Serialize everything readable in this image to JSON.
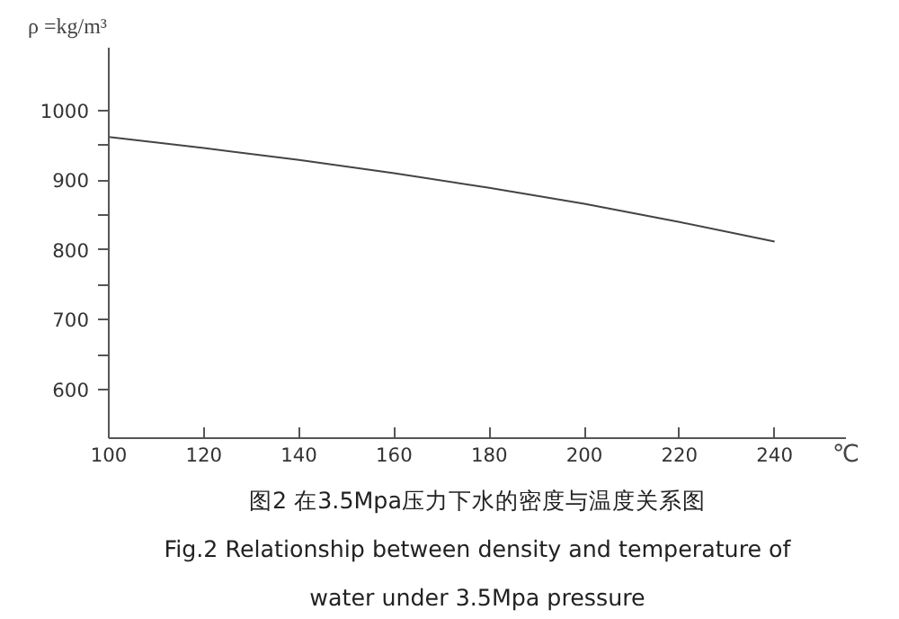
{
  "chart_data": {
    "type": "line",
    "ylabel": "ρ =kg/m³",
    "xlabel": "℃",
    "annotations": [
      "图2 在3.5Mpa压力下水的密度与温度关系图",
      "Fig.2 Relationship between density and temperature of",
      "water under 3.5Mpa pressure"
    ],
    "x": [
      100,
      120,
      140,
      160,
      180,
      200,
      220,
      240
    ],
    "series": [
      {
        "color": "#444444",
        "values": [
          962,
          946,
          929,
          910,
          889,
          866,
          840,
          812
        ]
      }
    ],
    "xlim": [
      100,
      255
    ],
    "xticks": [
      100,
      120,
      140,
      160,
      180,
      200,
      220,
      240
    ],
    "ylim": [
      530,
      1090
    ],
    "yticks": [
      600,
      {
        "value": 650,
        "label": null
      },
      700,
      {
        "value": 750,
        "label": null
      },
      800,
      {
        "value": 850,
        "label": null
      },
      900,
      {
        "value": 950,
        "label": null
      },
      1000
    ],
    "grid": false,
    "marker": "none",
    "line_style": "solid"
  }
}
